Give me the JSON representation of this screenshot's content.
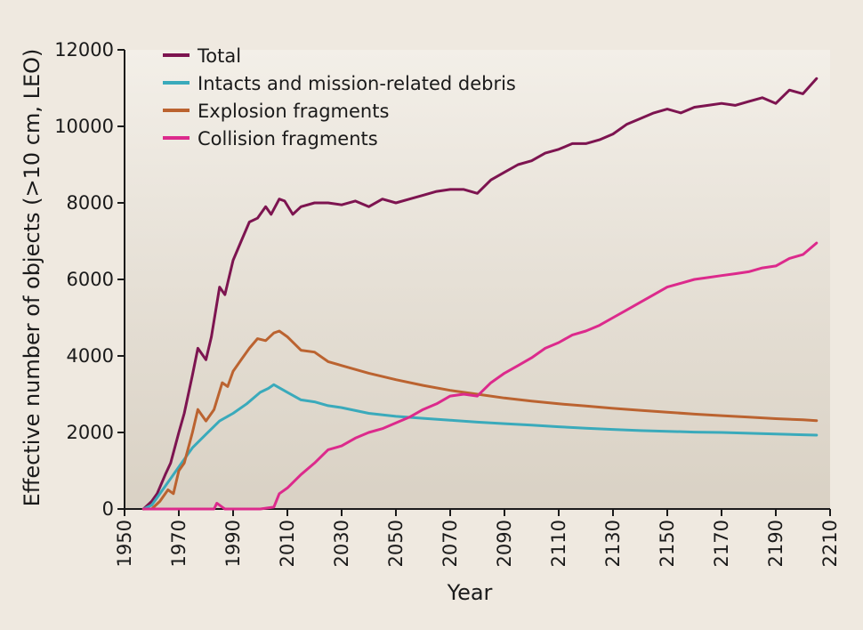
{
  "chart_data": {
    "type": "line",
    "title": "",
    "xlabel": "Year",
    "ylabel": "Effective number of objects (>10 cm, LEO)",
    "xlim": [
      1950,
      2210
    ],
    "ylim": [
      0,
      12000
    ],
    "xticks": [
      1950,
      1970,
      1990,
      2010,
      2030,
      2050,
      2070,
      2090,
      2110,
      2130,
      2150,
      2170,
      2190,
      2210
    ],
    "yticks": [
      0,
      2000,
      4000,
      6000,
      8000,
      10000,
      12000
    ],
    "legend_position": "top-left",
    "grid": false,
    "series": [
      {
        "name": "Total",
        "color": "#7d1450",
        "x": [
          1957,
          1960,
          1962,
          1965,
          1967,
          1970,
          1972,
          1975,
          1977,
          1980,
          1982,
          1985,
          1987,
          1990,
          1993,
          1996,
          1999,
          2002,
          2004,
          2007,
          2009,
          2012,
          2015,
          2020,
          2025,
          2030,
          2035,
          2040,
          2045,
          2050,
          2055,
          2060,
          2065,
          2070,
          2075,
          2080,
          2085,
          2090,
          2095,
          2100,
          2105,
          2110,
          2115,
          2120,
          2125,
          2130,
          2135,
          2140,
          2145,
          2150,
          2155,
          2160,
          2165,
          2170,
          2175,
          2180,
          2185,
          2190,
          2195,
          2200,
          2205
        ],
        "values": [
          0,
          200,
          400,
          900,
          1200,
          2000,
          2500,
          3500,
          4200,
          3900,
          4500,
          5800,
          5600,
          6500,
          7000,
          7500,
          7600,
          7900,
          7700,
          8100,
          8050,
          7700,
          7900,
          8000,
          8000,
          7950,
          8050,
          7900,
          8100,
          8000,
          8100,
          8200,
          8300,
          8350,
          8350,
          8250,
          8600,
          8800,
          9000,
          9100,
          9300,
          9400,
          9550,
          9550,
          9650,
          9800,
          10050,
          10200,
          10350,
          10450,
          10350,
          10500,
          10550,
          10600,
          10550,
          10650,
          10750,
          10600,
          10950,
          10850,
          11250
        ]
      },
      {
        "name": "Intacts and mission-related debris",
        "color": "#3aaabb",
        "x": [
          1957,
          1960,
          1965,
          1970,
          1975,
          1980,
          1985,
          1990,
          1995,
          2000,
          2003,
          2005,
          2010,
          2015,
          2020,
          2025,
          2030,
          2040,
          2050,
          2060,
          2070,
          2080,
          2090,
          2100,
          2110,
          2120,
          2130,
          2140,
          2150,
          2160,
          2170,
          2180,
          2190,
          2200,
          2205
        ],
        "values": [
          0,
          100,
          600,
          1100,
          1600,
          1950,
          2300,
          2500,
          2750,
          3050,
          3150,
          3250,
          3050,
          2850,
          2800,
          2700,
          2650,
          2500,
          2420,
          2370,
          2320,
          2270,
          2230,
          2190,
          2150,
          2110,
          2080,
          2050,
          2030,
          2010,
          2000,
          1980,
          1960,
          1940,
          1930
        ]
      },
      {
        "name": "Explosion fragments",
        "color": "#bb6330",
        "x": [
          1957,
          1960,
          1963,
          1966,
          1968,
          1970,
          1972,
          1975,
          1977,
          1980,
          1983,
          1986,
          1988,
          1990,
          1993,
          1996,
          1999,
          2002,
          2005,
          2007,
          2010,
          2015,
          2020,
          2025,
          2030,
          2040,
          2050,
          2060,
          2070,
          2080,
          2090,
          2100,
          2110,
          2120,
          2130,
          2140,
          2150,
          2160,
          2170,
          2180,
          2190,
          2200,
          2205
        ],
        "values": [
          0,
          0,
          200,
          500,
          400,
          1000,
          1200,
          2000,
          2600,
          2300,
          2600,
          3300,
          3200,
          3600,
          3900,
          4200,
          4450,
          4400,
          4600,
          4650,
          4500,
          4150,
          4100,
          3850,
          3750,
          3550,
          3380,
          3230,
          3100,
          3000,
          2900,
          2820,
          2750,
          2690,
          2630,
          2580,
          2530,
          2480,
          2440,
          2400,
          2360,
          2330,
          2310
        ]
      },
      {
        "name": "Collision fragments",
        "color": "#dc2a8c",
        "x": [
          1957,
          1983,
          1984,
          1985,
          1986,
          1987,
          1988,
          2000,
          2005,
          2007,
          2010,
          2015,
          2020,
          2025,
          2030,
          2035,
          2040,
          2045,
          2050,
          2055,
          2060,
          2065,
          2070,
          2075,
          2080,
          2085,
          2090,
          2095,
          2100,
          2105,
          2110,
          2115,
          2120,
          2125,
          2130,
          2135,
          2140,
          2145,
          2150,
          2155,
          2160,
          2165,
          2170,
          2175,
          2180,
          2185,
          2190,
          2195,
          2200,
          2205
        ],
        "values": [
          0,
          0,
          150,
          100,
          50,
          0,
          0,
          0,
          50,
          400,
          550,
          900,
          1200,
          1550,
          1650,
          1850,
          2000,
          2100,
          2250,
          2400,
          2600,
          2750,
          2950,
          3000,
          2950,
          3300,
          3550,
          3750,
          3950,
          4200,
          4350,
          4550,
          4650,
          4800,
          5000,
          5200,
          5400,
          5600,
          5800,
          5900,
          6000,
          6050,
          6100,
          6150,
          6200,
          6300,
          6350,
          6550,
          6650,
          6950
        ]
      }
    ]
  }
}
